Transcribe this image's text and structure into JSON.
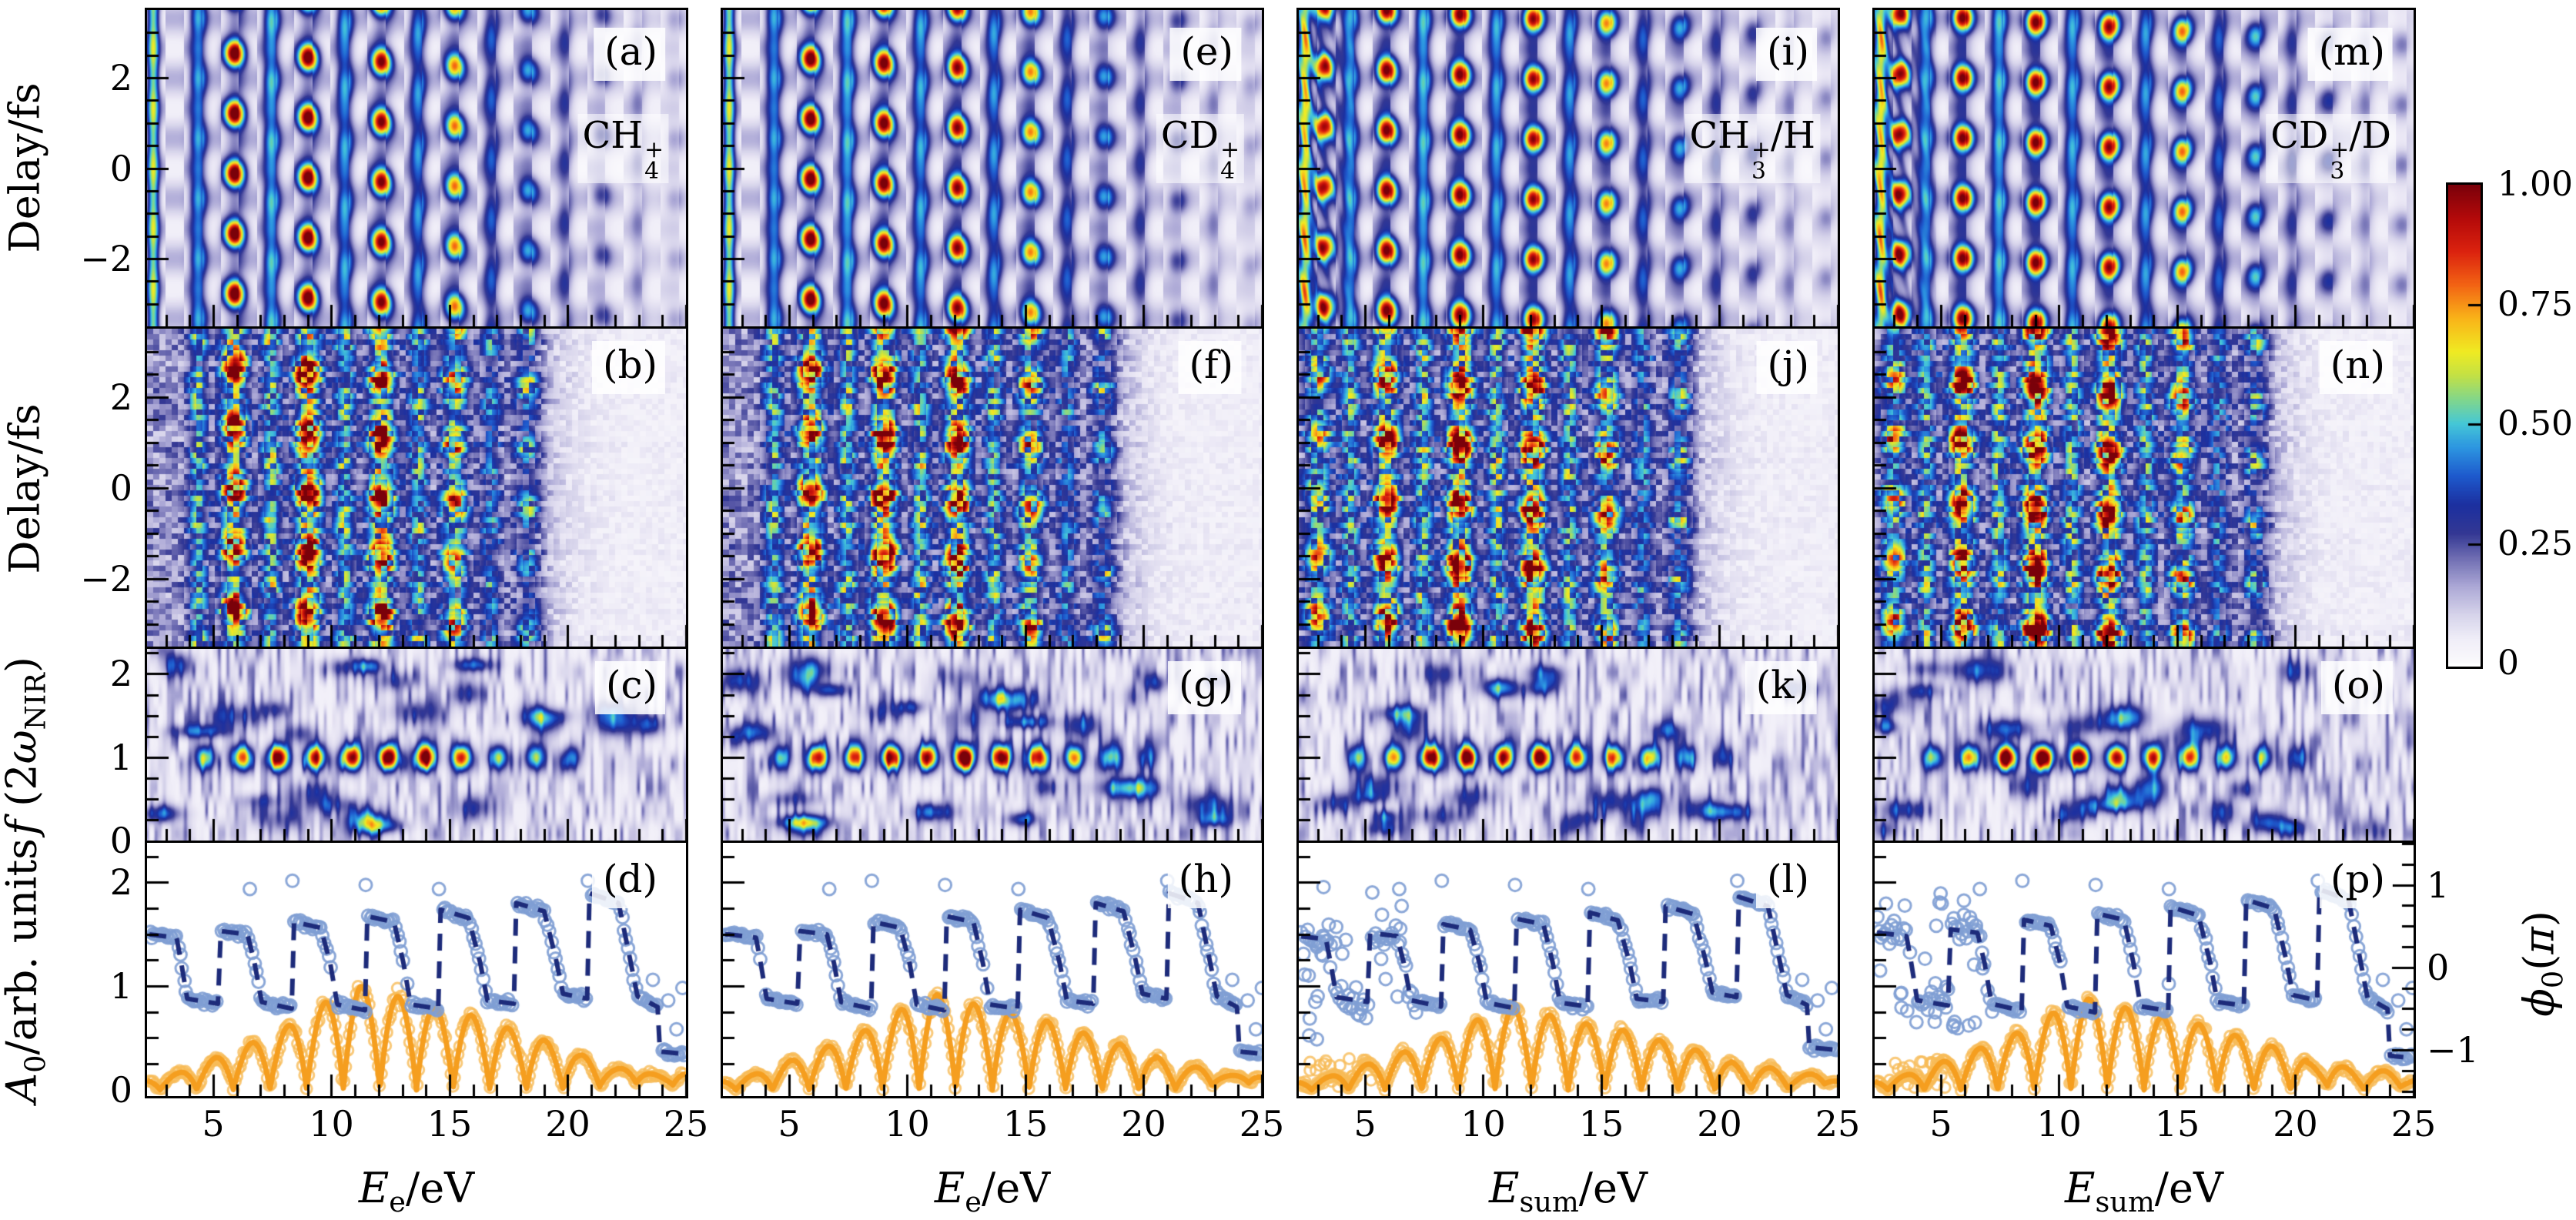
{
  "labels": {
    "delay": "Delay/fs",
    "fft": {
      "f": "f",
      "open": " (2",
      "omega": "ω",
      "sub": "NIR",
      "close": ")"
    },
    "amp": {
      "base": "A",
      "sub": "0",
      "rest": "/arb. units"
    },
    "phase": {
      "base": "ϕ",
      "sub": "0",
      "open": "(",
      "pi": "π",
      "close": ")"
    },
    "xe": {
      "base": "E",
      "sub": "e",
      "rest": "/eV"
    },
    "xsum": {
      "base": "E",
      "sub": "sum",
      "rest": "/eV"
    }
  },
  "panels": {
    "letters": [
      [
        "(a)",
        "(b)",
        "(c)",
        "(d)"
      ],
      [
        "(e)",
        "(f)",
        "(g)",
        "(h)"
      ],
      [
        "(i)",
        "(j)",
        "(k)",
        "(l)"
      ],
      [
        "(m)",
        "(n)",
        "(o)",
        "(p)"
      ]
    ],
    "species": [
      {
        "base": "CH",
        "sub": "4",
        "sup": "+",
        "suffix": ""
      },
      {
        "base": "CD",
        "sub": "4",
        "sup": "+",
        "suffix": ""
      },
      {
        "base": "CH",
        "sub": "3",
        "sup": "+",
        "suffix": "/H"
      },
      {
        "base": "CD",
        "sub": "3",
        "sup": "+",
        "suffix": "/D"
      }
    ]
  },
  "chart_data": {
    "type": "heatmap",
    "description": "4x4 grid of RABBITT-type panels: rows = theory delay-energy spectrogram, experimental delay-energy spectrogram, 2w-Fourier map f(2wNIR), and oscillation amplitude A0 with phase phi0; columns = CH4+, CD4+, CH3+/H, CD3+/D channels.",
    "grid": {
      "n_cols": 4,
      "n_rows": 4
    },
    "x_axis": {
      "min": 2.2,
      "max": 25.0,
      "major_ticks": [
        5,
        10,
        15,
        20,
        25
      ],
      "tick_labels": [
        "5",
        "10",
        "15",
        "20",
        "25"
      ],
      "minor_step": 1,
      "column_xlabel_index": [
        0,
        0,
        1,
        1
      ]
    },
    "delay_axis": {
      "min": -3.5,
      "max": 3.5,
      "major_ticks": [
        2,
        0,
        -2
      ],
      "tick_labels": [
        "2",
        "0",
        "−2"
      ],
      "minor_step": 0.5
    },
    "fft_axis": {
      "min": 0,
      "max": 2.3,
      "major_ticks": [
        2,
        1,
        0
      ],
      "tick_labels": [
        "2",
        "1",
        "0"
      ],
      "minor_step": 0.25
    },
    "amp_axis": {
      "min": -0.06,
      "max": 2.38,
      "major_ticks": [
        2,
        1,
        0
      ],
      "tick_labels": [
        "2",
        "1",
        "0"
      ],
      "minor_step": 0.25
    },
    "phase_axis": {
      "min": -1.56,
      "max": 1.51,
      "major_ticks": [
        1,
        0,
        -1
      ],
      "tick_labels": [
        "1",
        "0",
        "−1"
      ],
      "minor_step": 0.25
    },
    "oscillation_period_fs": 1.33,
    "sidebands": {
      "energies": [
        5.9,
        9.0,
        12.1,
        15.2,
        18.3,
        21.4,
        24.5
      ],
      "theory_amps": [
        1.0,
        1.0,
        0.95,
        0.72,
        0.42,
        0.22,
        0.12
      ],
      "exp_amps": [
        0.85,
        1.0,
        0.92,
        0.62,
        0.35,
        0.0,
        0.0
      ]
    },
    "harmonics": {
      "energies": [
        4.35,
        7.45,
        10.55,
        13.65,
        16.75,
        19.85,
        22.95
      ],
      "theory_amps": [
        0.55,
        0.6,
        0.55,
        0.5,
        0.38,
        0.24,
        0.14
      ],
      "exp_amps": [
        0.3,
        0.33,
        0.33,
        0.3,
        0.22,
        0.0,
        0.0
      ]
    },
    "fft_peaks": {
      "f_center": 1.0,
      "energies": [
        4.65,
        6.2,
        7.75,
        9.3,
        10.85,
        12.4,
        13.95,
        15.5,
        17.05,
        18.6,
        20.15
      ],
      "amps": [
        0.45,
        0.75,
        0.95,
        1.0,
        1.0,
        1.0,
        0.92,
        0.82,
        0.62,
        0.45,
        0.3
      ]
    },
    "A0": {
      "first_zero_eV": 2.75,
      "zero_spacing_eV": 1.55,
      "envelope": [
        [
          2.3,
          0.1
        ],
        [
          3.5,
          0.16
        ],
        [
          5.0,
          0.3
        ],
        [
          6.6,
          0.45
        ],
        [
          8.2,
          0.62
        ],
        [
          9.8,
          0.85
        ],
        [
          11.2,
          1.0
        ],
        [
          12.8,
          0.9
        ],
        [
          14.3,
          0.8
        ],
        [
          15.9,
          0.72
        ],
        [
          17.4,
          0.6
        ],
        [
          19.0,
          0.48
        ],
        [
          20.5,
          0.33
        ],
        [
          22.0,
          0.22
        ],
        [
          23.5,
          0.17
        ],
        [
          25.0,
          0.12
        ]
      ],
      "column_scale": [
        1.0,
        0.92,
        0.8,
        0.88
      ],
      "color": "#f59e1f",
      "marker_color": "#f8bb58"
    },
    "phi0": {
      "knots": [
        [
          2.3,
          0.4
        ],
        [
          3.45,
          0.36
        ],
        [
          3.65,
          0.05
        ],
        [
          3.9,
          -0.38
        ],
        [
          5.2,
          -0.44
        ],
        [
          5.32,
          0.44
        ],
        [
          6.45,
          0.4
        ],
        [
          6.75,
          0.05
        ],
        [
          7.05,
          -0.42
        ],
        [
          8.32,
          -0.5
        ],
        [
          8.42,
          0.55
        ],
        [
          9.55,
          0.48
        ],
        [
          9.95,
          0.05
        ],
        [
          10.25,
          -0.45
        ],
        [
          11.42,
          -0.52
        ],
        [
          11.52,
          0.62
        ],
        [
          12.65,
          0.55
        ],
        [
          13.05,
          0.05
        ],
        [
          13.35,
          -0.45
        ],
        [
          14.52,
          -0.5
        ],
        [
          14.62,
          0.7
        ],
        [
          15.8,
          0.6
        ],
        [
          16.3,
          0.05
        ],
        [
          16.6,
          -0.4
        ],
        [
          17.72,
          -0.44
        ],
        [
          17.82,
          0.78
        ],
        [
          19.0,
          0.68
        ],
        [
          19.5,
          0.1
        ],
        [
          19.8,
          -0.32
        ],
        [
          20.82,
          -0.38
        ],
        [
          20.92,
          0.9
        ],
        [
          22.15,
          0.78
        ],
        [
          22.6,
          0.15
        ],
        [
          22.95,
          -0.35
        ],
        [
          23.8,
          -0.48
        ],
        [
          23.9,
          -1.02
        ],
        [
          24.95,
          -1.05
        ]
      ],
      "outliers": [
        [
          6.55,
          0.95
        ],
        [
          8.35,
          1.05
        ],
        [
          11.45,
          1.0
        ],
        [
          14.55,
          0.95
        ],
        [
          20.85,
          1.05
        ],
        [
          23.6,
          -0.15
        ],
        [
          24.25,
          -0.4
        ],
        [
          24.6,
          -0.75
        ],
        [
          24.85,
          -0.25
        ]
      ],
      "color": "#1d2b7a",
      "marker_color": "#7f9fd4"
    },
    "column_flags": {
      "diagonal_lowE": [
        false,
        false,
        true,
        true
      ],
      "lowE_phase_scatter": [
        false,
        false,
        true,
        true
      ],
      "extra_low_sideband": [
        false,
        false,
        true,
        true
      ],
      "seeds": [
        11,
        23,
        37,
        53
      ]
    },
    "colorbar": {
      "tick_labels": [
        "1.00",
        "0.75",
        "0.50",
        "0.25",
        "0"
      ],
      "tick_values": [
        1.0,
        0.75,
        0.5,
        0.25,
        0.0
      ]
    },
    "colormap_stops": [
      [
        0.0,
        [
          251,
          250,
          252
        ]
      ],
      [
        0.05,
        [
          240,
          238,
          248
        ]
      ],
      [
        0.1,
        [
          215,
          212,
          235
        ]
      ],
      [
        0.16,
        [
          172,
          168,
          214
        ]
      ],
      [
        0.22,
        [
          110,
          108,
          178
        ]
      ],
      [
        0.27,
        [
          52,
          56,
          148
        ]
      ],
      [
        0.33,
        [
          28,
          48,
          160
        ]
      ],
      [
        0.39,
        [
          30,
          90,
          205
        ]
      ],
      [
        0.45,
        [
          45,
          150,
          225
        ]
      ],
      [
        0.5,
        [
          70,
          200,
          215
        ]
      ],
      [
        0.55,
        [
          130,
          215,
          140
        ]
      ],
      [
        0.6,
        [
          195,
          225,
          70
        ]
      ],
      [
        0.65,
        [
          240,
          235,
          35
        ]
      ],
      [
        0.72,
        [
          250,
          180,
          25
        ]
      ],
      [
        0.79,
        [
          243,
          100,
          20
        ]
      ],
      [
        0.86,
        [
          220,
          35,
          15
        ]
      ],
      [
        0.93,
        [
          180,
          10,
          10
        ]
      ],
      [
        1.0,
        [
          122,
          1,
          10
        ]
      ]
    ]
  }
}
